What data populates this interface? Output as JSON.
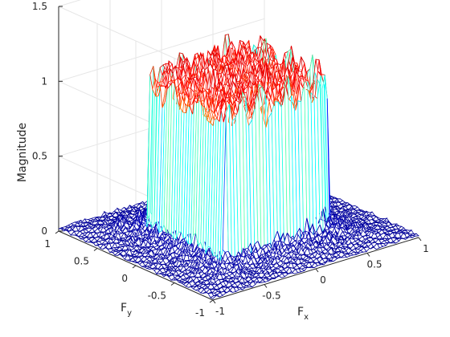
{
  "chart_data": {
    "type": "mesh",
    "title": "",
    "xlabel": "F",
    "xlabel_sub": "x",
    "ylabel": "F",
    "ylabel_sub": "y",
    "zlabel": "Magnitude",
    "xlim": [
      -1,
      1
    ],
    "ylim": [
      -1,
      1
    ],
    "zlim": [
      0,
      1.5
    ],
    "xticks": [
      "-1",
      "-0.5",
      "0",
      "0.5",
      "1"
    ],
    "yticks": [
      "-1",
      "-0.5",
      "0",
      "0.5",
      "1"
    ],
    "zticks": [
      "0",
      "0.5",
      "1",
      "1.5"
    ],
    "grid": true,
    "colormap": "jet",
    "colormap_stops": [
      "#00008f",
      "#0000ff",
      "#00ffff",
      "#ffff00",
      "#ff0000",
      "#800000"
    ],
    "grid_size": 64,
    "surface": {
      "shape": "square-passband",
      "passband": {
        "fx": [
          -0.5,
          0.5
        ],
        "fy": [
          -0.5,
          0.5
        ]
      },
      "passband_magnitude_mean": 1.0,
      "passband_ripple_max": 1.3,
      "stopband_magnitude_max": 0.2
    }
  }
}
